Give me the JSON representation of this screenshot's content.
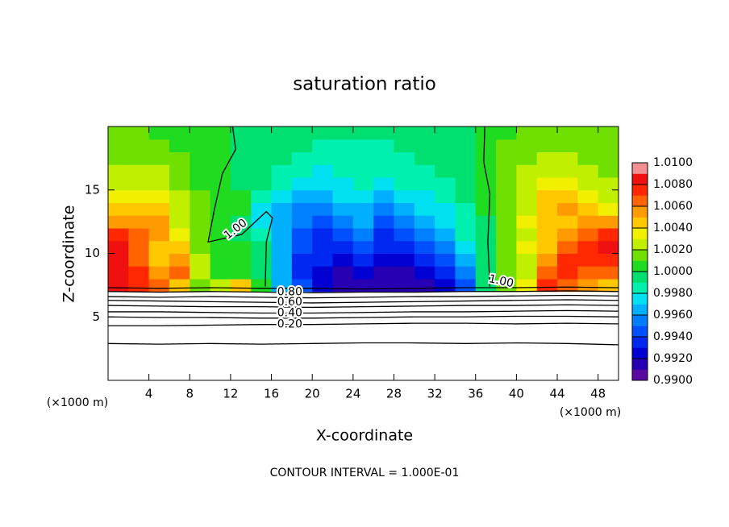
{
  "chart_data": {
    "type": "heatmap",
    "title": "saturation ratio",
    "xlabel": "X-coordinate",
    "ylabel": "Z-coordinate",
    "x_unit": "(×1000 m)",
    "y_unit": "(×1000 m)",
    "note": "CONTOUR INTERVAL = 1.000E-01",
    "xlim": [
      0,
      50
    ],
    "ylim": [
      0,
      20
    ],
    "xticks": [
      4,
      8,
      12,
      16,
      20,
      24,
      28,
      32,
      36,
      40,
      44,
      48
    ],
    "yticks": [
      5,
      10,
      15
    ],
    "x": [
      1,
      3,
      5,
      7,
      9,
      11,
      13,
      15,
      17,
      19,
      21,
      23,
      25,
      27,
      29,
      31,
      33,
      35,
      37,
      39,
      41,
      43,
      45,
      47,
      49
    ],
    "y": [
      7.5,
      8.5,
      9.5,
      10.5,
      11.5,
      12.5,
      13.5,
      14.5,
      15.5,
      16.5,
      17.5,
      18.5,
      19.5
    ],
    "z": [
      [
        1.008,
        1.007,
        1.006,
        1.004,
        1.001,
        1.002,
        1.004,
        1.0,
        0.996,
        0.994,
        0.992,
        0.991,
        0.991,
        0.991,
        0.991,
        0.991,
        0.992,
        0.994,
        0.999,
        1.001,
        1.003,
        1.007,
        1.006,
        1.005,
        1.004
      ],
      [
        1.008,
        1.007,
        1.005,
        1.006,
        1.002,
        1.0,
        1.0,
        0.999,
        0.996,
        0.993,
        0.992,
        0.991,
        0.992,
        0.991,
        0.991,
        0.992,
        0.993,
        0.995,
        0.999,
        1.001,
        1.002,
        1.006,
        1.007,
        1.006,
        1.006
      ],
      [
        1.008,
        1.006,
        1.004,
        1.005,
        1.002,
        1.0,
        1.0,
        0.999,
        0.996,
        0.993,
        0.993,
        0.992,
        0.993,
        0.992,
        0.992,
        0.993,
        0.994,
        0.996,
        0.999,
        1.001,
        1.002,
        1.005,
        1.007,
        1.007,
        1.007
      ],
      [
        1.008,
        1.006,
        1.004,
        1.004,
        1.001,
        1.0,
        1.0,
        0.999,
        0.996,
        0.994,
        0.993,
        0.993,
        0.994,
        0.993,
        0.993,
        0.994,
        0.995,
        0.997,
        0.999,
        1.001,
        1.003,
        1.004,
        1.006,
        1.007,
        1.008
      ],
      [
        1.007,
        1.006,
        1.005,
        1.003,
        1.001,
        1.0,
        0.999,
        0.998,
        0.996,
        0.994,
        0.993,
        0.994,
        0.995,
        0.993,
        0.994,
        0.995,
        0.996,
        0.998,
        0.999,
        1.001,
        1.002,
        1.004,
        1.005,
        1.006,
        1.007
      ],
      [
        1.005,
        1.005,
        1.005,
        1.002,
        1.001,
        1.0,
        0.999,
        0.997,
        0.996,
        0.995,
        0.994,
        0.995,
        0.996,
        0.994,
        0.995,
        0.996,
        0.997,
        0.998,
        0.999,
        1.001,
        1.003,
        1.004,
        1.004,
        1.005,
        1.005
      ],
      [
        1.004,
        1.004,
        1.004,
        1.002,
        1.001,
        1.0,
        1.0,
        0.997,
        0.996,
        0.995,
        0.995,
        0.996,
        0.996,
        0.995,
        0.996,
        0.997,
        0.997,
        0.998,
        1.0,
        1.001,
        1.002,
        1.004,
        1.005,
        1.004,
        1.003
      ],
      [
        1.003,
        1.003,
        1.003,
        1.002,
        1.001,
        1.0,
        1.0,
        0.998,
        0.997,
        0.996,
        0.996,
        0.997,
        0.997,
        0.996,
        0.997,
        0.997,
        0.998,
        0.999,
        1.0,
        1.001,
        1.002,
        1.004,
        1.004,
        1.003,
        1.002
      ],
      [
        1.002,
        1.002,
        1.002,
        1.001,
        1.0,
        1.0,
        0.999,
        0.999,
        0.998,
        0.997,
        0.997,
        0.997,
        0.998,
        0.997,
        0.998,
        0.998,
        0.998,
        0.999,
        1.0,
        1.001,
        1.002,
        1.003,
        1.003,
        1.002,
        1.002
      ],
      [
        1.002,
        1.002,
        1.002,
        1.001,
        1.0,
        1.0,
        0.999,
        0.999,
        0.998,
        0.998,
        0.997,
        0.998,
        0.998,
        0.998,
        0.998,
        0.998,
        0.999,
        0.999,
        1.0,
        1.001,
        1.002,
        1.002,
        1.002,
        1.002,
        1.001
      ],
      [
        1.001,
        1.001,
        1.001,
        1.001,
        1.0,
        1.0,
        0.999,
        0.999,
        0.999,
        0.998,
        0.998,
        0.998,
        0.998,
        0.998,
        0.998,
        0.999,
        0.999,
        0.999,
        1.0,
        1.001,
        1.001,
        1.002,
        1.002,
        1.001,
        1.001
      ],
      [
        1.001,
        1.001,
        1.001,
        1.0,
        1.0,
        1.0,
        0.999,
        0.999,
        0.999,
        0.999,
        0.998,
        0.998,
        0.998,
        0.998,
        0.999,
        0.999,
        0.999,
        0.999,
        1.0,
        1.001,
        1.001,
        1.001,
        1.001,
        1.001,
        1.001
      ],
      [
        1.001,
        1.001,
        1.0,
        1.0,
        1.0,
        1.0,
        0.999,
        0.999,
        0.999,
        0.999,
        0.999,
        0.999,
        0.999,
        0.999,
        0.999,
        0.999,
        0.999,
        0.999,
        1.0,
        1.0,
        1.001,
        1.001,
        1.001,
        1.001,
        1.001
      ]
    ],
    "colorbar": {
      "lim": [
        0.99,
        1.01
      ],
      "colors": [
        "#5a0aa0",
        "#2800b4",
        "#0000d2",
        "#0028f0",
        "#0050ff",
        "#0080ff",
        "#00b0ff",
        "#00e0f0",
        "#00f0b0",
        "#00e070",
        "#20dc20",
        "#70e000",
        "#c0f000",
        "#f0f000",
        "#ffc800",
        "#ff9a00",
        "#ff6400",
        "#ff2800",
        "#f01010",
        "#f09090"
      ],
      "ticks": [
        {
          "value": 0.99,
          "label": "0.9900"
        },
        {
          "value": 0.992,
          "label": "0.9920"
        },
        {
          "value": 0.994,
          "label": "0.9940"
        },
        {
          "value": 0.996,
          "label": "0.9960"
        },
        {
          "value": 0.998,
          "label": "0.9980"
        },
        {
          "value": 1.0,
          "label": "1.0000"
        },
        {
          "value": 1.002,
          "label": "1.0020"
        },
        {
          "value": 1.004,
          "label": "1.0040"
        },
        {
          "value": 1.006,
          "label": "1.0060"
        },
        {
          "value": 1.008,
          "label": "1.0080"
        },
        {
          "value": 1.01,
          "label": "1.0100"
        }
      ]
    },
    "contours": [
      {
        "label": "1.00",
        "x": [
          12.2,
          12.5,
          11.2,
          10.4,
          9.8,
          13.1,
          15.5,
          16.1,
          15.5,
          15.4
        ],
        "y": [
          20,
          18.2,
          16.3,
          13.4,
          10.9,
          11.5,
          13.3,
          12.8,
          10.9,
          7.4
        ]
      },
      {
        "label": "1.00",
        "x": [
          36.9,
          36.8,
          37.4,
          37.2,
          37.4
        ],
        "y": [
          20,
          17.2,
          14.7,
          10.9,
          7.4
        ]
      },
      {
        "x": [
          0,
          5,
          10,
          15,
          20,
          25,
          30,
          35,
          40,
          45,
          50
        ],
        "y": [
          7.3,
          7.25,
          7.3,
          7.25,
          7.25,
          7.2,
          7.25,
          7.3,
          7.3,
          7.35,
          7.3
        ]
      },
      {
        "label": "0.80",
        "x": [
          0,
          5,
          10,
          15,
          20,
          25,
          30,
          35,
          40,
          45,
          50
        ],
        "y": [
          7.0,
          6.95,
          7.0,
          6.95,
          6.9,
          6.95,
          6.95,
          7.0,
          7.0,
          7.05,
          7.0
        ]
      },
      {
        "x": [
          0,
          5,
          10,
          15,
          20,
          25,
          30,
          35,
          40,
          45,
          50
        ],
        "y": [
          6.6,
          6.55,
          6.6,
          6.55,
          6.5,
          6.55,
          6.6,
          6.6,
          6.65,
          6.7,
          6.65
        ]
      },
      {
        "label": "0.60",
        "x": [
          0,
          5,
          10,
          15,
          20,
          25,
          30,
          35,
          40,
          45,
          50
        ],
        "y": [
          6.3,
          6.25,
          6.2,
          6.15,
          6.1,
          6.15,
          6.2,
          6.25,
          6.3,
          6.35,
          6.3
        ]
      },
      {
        "x": [
          0,
          5,
          10,
          15,
          20,
          25,
          30,
          35,
          40,
          45,
          50
        ],
        "y": [
          5.9,
          5.85,
          5.8,
          5.8,
          5.75,
          5.8,
          5.85,
          5.9,
          5.9,
          5.95,
          5.9
        ]
      },
      {
        "label": "0.40",
        "x": [
          0,
          5,
          10,
          15,
          20,
          25,
          30,
          35,
          40,
          45,
          50
        ],
        "y": [
          5.4,
          5.4,
          5.35,
          5.3,
          5.3,
          5.35,
          5.4,
          5.4,
          5.45,
          5.5,
          5.45
        ]
      },
      {
        "x": [
          0,
          5,
          10,
          15,
          20,
          25,
          30,
          35,
          40,
          45,
          50
        ],
        "y": [
          5.0,
          4.95,
          4.95,
          4.9,
          4.9,
          4.95,
          5.0,
          5.0,
          5.05,
          5.05,
          5.0
        ]
      },
      {
        "label": "0.20",
        "x": [
          0,
          5,
          10,
          15,
          20,
          25,
          30,
          35,
          40,
          45,
          50
        ],
        "y": [
          4.3,
          4.3,
          4.35,
          4.4,
          4.4,
          4.45,
          4.5,
          4.5,
          4.45,
          4.5,
          4.45
        ]
      },
      {
        "x": [
          0,
          5,
          10,
          15,
          20,
          25,
          30,
          35,
          40,
          45,
          50
        ],
        "y": [
          2.9,
          2.85,
          2.9,
          2.85,
          2.9,
          2.95,
          2.95,
          2.9,
          2.95,
          2.9,
          2.8
        ]
      }
    ]
  }
}
